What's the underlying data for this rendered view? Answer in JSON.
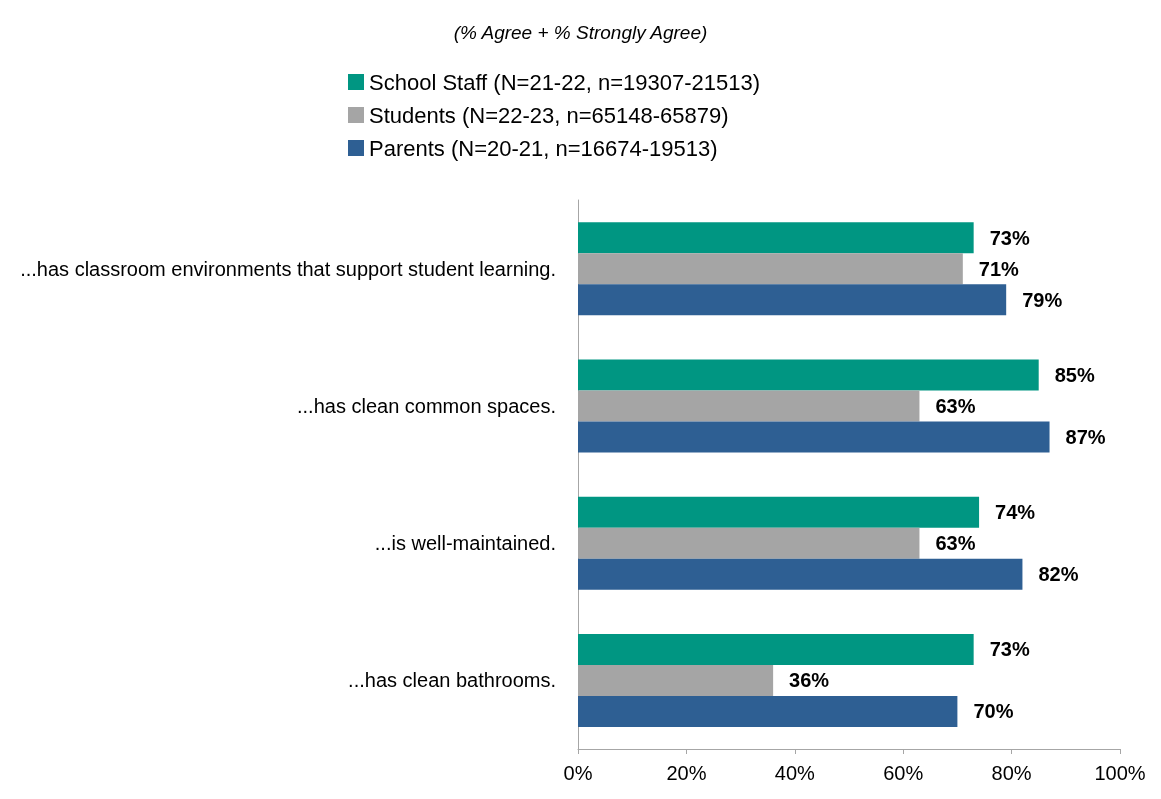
{
  "chart_data": {
    "type": "bar",
    "orientation": "horizontal",
    "title": "(% Agree + % Strongly Agree)",
    "categories": [
      "...has classroom environments that support student learning.",
      "...has clean common spaces.",
      "...is well-maintained.",
      "...has clean bathrooms."
    ],
    "series": [
      {
        "name": "School Staff (N=21-22, n=19307-21513)",
        "color": "#009682",
        "values": [
          73,
          85,
          74,
          73
        ],
        "value_labels": [
          "73%",
          "85%",
          "74%",
          "73%"
        ]
      },
      {
        "name": "Students (N=22-23, n=65148-65879)",
        "color": "#a5a5a5",
        "values": [
          71,
          63,
          63,
          36
        ],
        "value_labels": [
          "71%",
          "63%",
          "63%",
          "36%"
        ]
      },
      {
        "name": "Parents (N=20-21, n=16674-19513)",
        "color": "#2e5f93",
        "values": [
          79,
          87,
          82,
          70
        ],
        "value_labels": [
          "79%",
          "87%",
          "82%",
          "70%"
        ]
      }
    ],
    "xlim": [
      0,
      100
    ],
    "xticks": [
      {
        "value": 0,
        "label": "0%"
      },
      {
        "value": 20,
        "label": "20%"
      },
      {
        "value": 40,
        "label": "40%"
      },
      {
        "value": 60,
        "label": "60%"
      },
      {
        "value": 80,
        "label": "80%"
      },
      {
        "value": 100,
        "label": "100%"
      }
    ],
    "grid": false,
    "legend": "top"
  }
}
